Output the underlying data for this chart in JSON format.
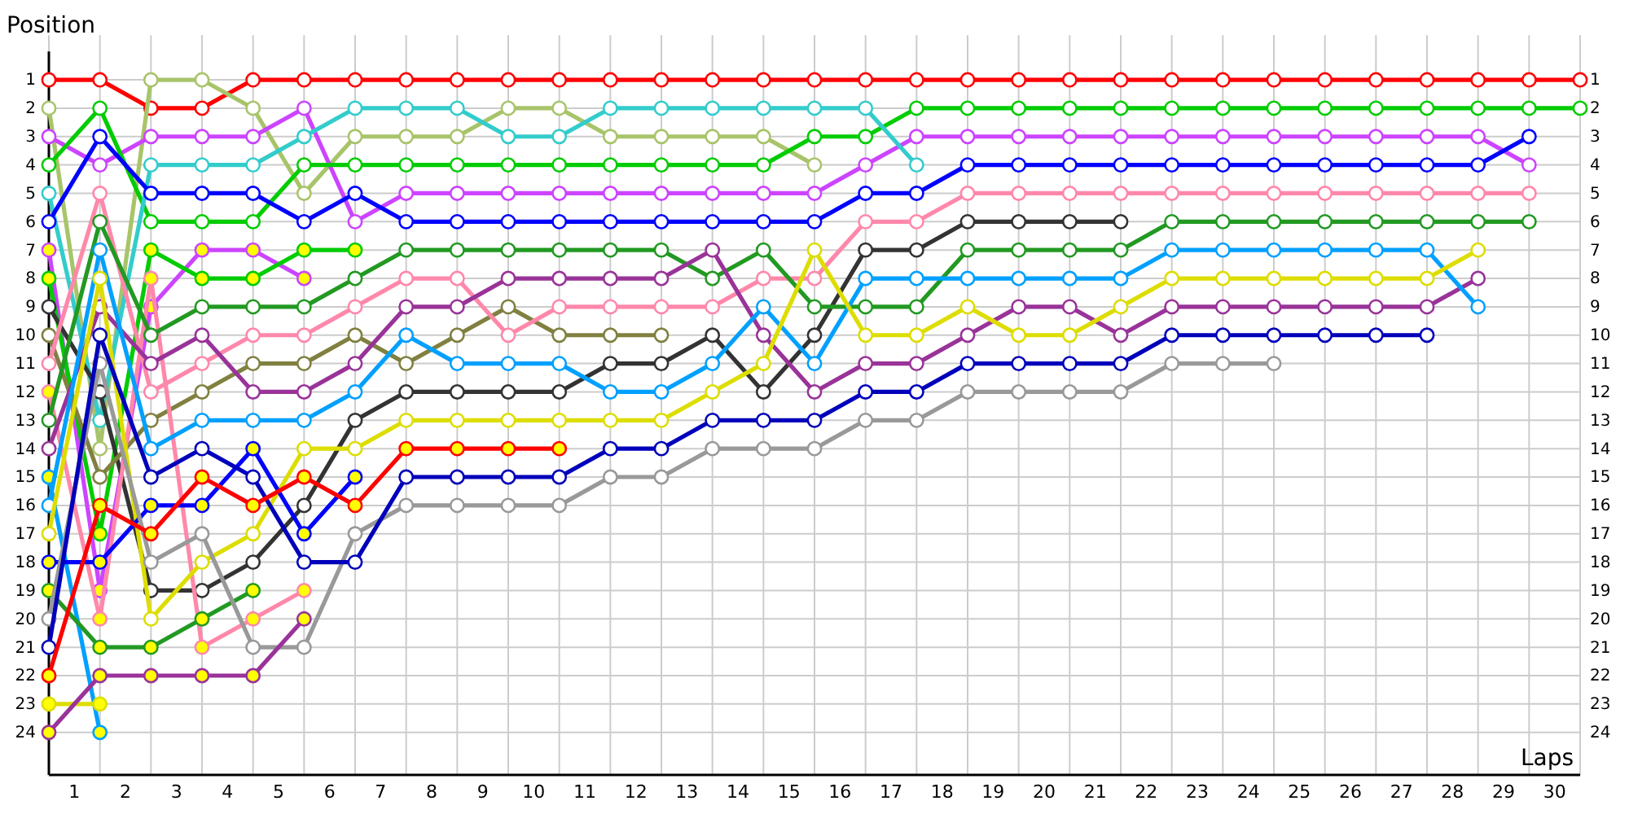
{
  "chart_data": {
    "type": "line",
    "xlabel": "Laps",
    "ylabel": "Position",
    "marker": "circle",
    "grid": true,
    "x": [
      0,
      1,
      2,
      3,
      4,
      5,
      6,
      7,
      8,
      9,
      10,
      11,
      12,
      13,
      14,
      15,
      16,
      17,
      18,
      19,
      20,
      21,
      22,
      23,
      24,
      25,
      26,
      27,
      28,
      29,
      30
    ],
    "xlim": [
      0,
      30
    ],
    "xticks": [
      {
        "value": 0,
        "label": null
      },
      {
        "value": 0.5,
        "label": "1"
      },
      {
        "value": 1,
        "label": null
      },
      {
        "value": 1.5,
        "label": "2"
      },
      {
        "value": 2,
        "label": null
      },
      {
        "value": 2.5,
        "label": "3"
      },
      {
        "value": 3,
        "label": null
      },
      {
        "value": 3.5,
        "label": "4"
      },
      {
        "value": 4,
        "label": null
      },
      {
        "value": 4.5,
        "label": "5"
      },
      {
        "value": 5,
        "label": null
      },
      {
        "value": 5.5,
        "label": "6"
      },
      {
        "value": 6,
        "label": null
      },
      {
        "value": 6.5,
        "label": "7"
      },
      {
        "value": 7,
        "label": null
      },
      {
        "value": 7.5,
        "label": "8"
      },
      {
        "value": 8,
        "label": null
      },
      {
        "value": 8.5,
        "label": "9"
      },
      {
        "value": 9,
        "label": null
      },
      {
        "value": 9.5,
        "label": "10"
      },
      {
        "value": 10,
        "label": null
      },
      {
        "value": 10.5,
        "label": "11"
      },
      {
        "value": 11,
        "label": null
      },
      {
        "value": 11.5,
        "label": "12"
      },
      {
        "value": 12,
        "label": null
      },
      {
        "value": 12.5,
        "label": "13"
      },
      {
        "value": 13,
        "label": null
      },
      {
        "value": 13.5,
        "label": "14"
      },
      {
        "value": 14,
        "label": null
      },
      {
        "value": 14.5,
        "label": "15"
      },
      {
        "value": 15,
        "label": null
      },
      {
        "value": 15.5,
        "label": "16"
      },
      {
        "value": 16,
        "label": null
      },
      {
        "value": 16.5,
        "label": "17"
      },
      {
        "value": 17,
        "label": null
      },
      {
        "value": 17.5,
        "label": "18"
      },
      {
        "value": 18,
        "label": null
      },
      {
        "value": 18.5,
        "label": "19"
      },
      {
        "value": 19,
        "label": null
      },
      {
        "value": 19.5,
        "label": "20"
      },
      {
        "value": 20,
        "label": null
      },
      {
        "value": 20.5,
        "label": "21"
      },
      {
        "value": 21,
        "label": null
      },
      {
        "value": 21.5,
        "label": "22"
      },
      {
        "value": 22,
        "label": null
      },
      {
        "value": 22.5,
        "label": "23"
      },
      {
        "value": 23,
        "label": null
      },
      {
        "value": 23.5,
        "label": "24"
      },
      {
        "value": 24,
        "label": null
      },
      {
        "value": 24.5,
        "label": "25"
      },
      {
        "value": 25,
        "label": null
      },
      {
        "value": 25.5,
        "label": "26"
      },
      {
        "value": 26,
        "label": null
      },
      {
        "value": 26.5,
        "label": "27"
      },
      {
        "value": 27,
        "label": null
      },
      {
        "value": 27.5,
        "label": "28"
      },
      {
        "value": 28,
        "label": null
      },
      {
        "value": 28.5,
        "label": "29"
      },
      {
        "value": 29,
        "label": null
      },
      {
        "value": 29.5,
        "label": "30"
      },
      {
        "value": 30,
        "label": null
      }
    ],
    "ylim": [
      25.5,
      0
    ],
    "yticks": [
      1,
      2,
      3,
      4,
      5,
      6,
      7,
      8,
      9,
      10,
      11,
      12,
      13,
      14,
      15,
      16,
      17,
      18,
      19,
      20,
      21,
      22,
      23,
      24
    ],
    "y2lim": [
      25.5,
      0
    ],
    "y2ticks": [
      1,
      2,
      3,
      4,
      5,
      6,
      7,
      8,
      9,
      10,
      11,
      12,
      13,
      14,
      15,
      16,
      17,
      18,
      19,
      20,
      21,
      22,
      23,
      24
    ],
    "series": [
      {
        "color": "#ff0000",
        "values": [
          1,
          1,
          2,
          2,
          1,
          1,
          1,
          1,
          1,
          1,
          1,
          1,
          1,
          1,
          1,
          1,
          1,
          1,
          1,
          1,
          1,
          1,
          1,
          1,
          1,
          1,
          1,
          1,
          1,
          1,
          1
        ]
      },
      {
        "color": "#a8c46a",
        "values": [
          2,
          14,
          1,
          1,
          2,
          5,
          3,
          3,
          3,
          2,
          2,
          3,
          3,
          3,
          3,
          4,
          null,
          null,
          null,
          null,
          null,
          null,
          null,
          null,
          null,
          null,
          null,
          null,
          null,
          null,
          null
        ]
      },
      {
        "color": "#cc44ff",
        "values": [
          3,
          4,
          3,
          3,
          3,
          2,
          6,
          5,
          5,
          5,
          5,
          5,
          5,
          5,
          5,
          5,
          4,
          3,
          3,
          3,
          3,
          3,
          3,
          3,
          3,
          3,
          3,
          3,
          3,
          4,
          null
        ]
      },
      {
        "color": "#00cc00",
        "values": [
          4,
          2,
          6,
          6,
          6,
          4,
          4,
          4,
          4,
          4,
          4,
          4,
          4,
          4,
          4,
          3,
          3,
          2,
          2,
          2,
          2,
          2,
          2,
          2,
          2,
          2,
          2,
          2,
          2,
          2,
          2
        ]
      },
      {
        "color": "#33cccc",
        "values": [
          5,
          13,
          4,
          4,
          4,
          3,
          2,
          2,
          2,
          3,
          3,
          2,
          2,
          2,
          2,
          2,
          2,
          4,
          null,
          null,
          null,
          null,
          null,
          null,
          null,
          null,
          null,
          null,
          null,
          null,
          null
        ]
      },
      {
        "color": "#0000ff",
        "values": [
          6,
          3,
          5,
          5,
          5,
          6,
          5,
          6,
          6,
          6,
          6,
          6,
          6,
          6,
          6,
          6,
          5,
          5,
          4,
          4,
          4,
          4,
          4,
          4,
          4,
          4,
          4,
          4,
          4,
          3,
          null
        ]
      },
      {
        "color": "#cc44ff",
        "values": [
          7,
          19,
          9,
          7,
          7,
          8,
          null,
          null,
          null,
          null,
          null,
          null,
          null,
          null,
          null,
          null,
          null,
          null,
          null,
          null,
          null,
          null,
          null,
          null,
          null,
          null,
          null,
          null,
          null,
          null,
          null
        ],
        "colors": [
          "#ffff00",
          "#ffff00",
          "#ffff00",
          "#ffff00",
          "#ffff00",
          "#ffff00",
          null,
          null,
          null,
          null,
          null,
          null,
          null,
          null,
          null,
          null,
          null,
          null,
          null,
          null,
          null,
          null,
          null,
          null,
          null,
          null,
          null,
          null,
          null,
          null,
          null
        ]
      },
      {
        "color": "#00cc00",
        "values": [
          8,
          17,
          7,
          8,
          8,
          7,
          7,
          null,
          null,
          null,
          null,
          null,
          null,
          null,
          null,
          null,
          null,
          null,
          null,
          null,
          null,
          null,
          null,
          null,
          null,
          null,
          null,
          null,
          null,
          null,
          null
        ],
        "colors": [
          "#ffff00",
          "#ffff00",
          "#ffff00",
          "#ffff00",
          "#ffff00",
          "#ffff00",
          "#ffff00",
          null,
          null,
          null,
          null,
          null,
          null,
          null,
          null,
          null,
          null,
          null,
          null,
          null,
          null,
          null,
          null,
          null,
          null,
          null,
          null,
          null,
          null,
          null,
          null
        ]
      },
      {
        "color": "#333333",
        "values": [
          9,
          12,
          19,
          19,
          18,
          16,
          13,
          12,
          12,
          12,
          12,
          11,
          11,
          10,
          12,
          10,
          7,
          7,
          6,
          6,
          6,
          6,
          null,
          null,
          null,
          null,
          null,
          null,
          null,
          null,
          null
        ]
      },
      {
        "color": "#808040",
        "values": [
          10,
          15,
          13,
          12,
          11,
          11,
          10,
          11,
          10,
          9,
          10,
          10,
          10,
          null,
          null,
          null,
          null,
          null,
          null,
          null,
          null,
          null,
          null,
          null,
          null,
          null,
          null,
          null,
          null,
          null,
          null
        ]
      },
      {
        "color": "#ff88aa",
        "values": [
          11,
          5,
          12,
          11,
          10,
          10,
          9,
          8,
          8,
          10,
          9,
          9,
          9,
          9,
          8,
          8,
          6,
          6,
          5,
          5,
          5,
          5,
          5,
          5,
          5,
          5,
          5,
          5,
          5,
          5,
          null
        ]
      },
      {
        "color": "#ff88aa",
        "values": [
          12,
          20,
          8,
          21,
          20,
          19,
          null,
          null,
          null,
          null,
          null,
          null,
          null,
          null,
          null,
          null,
          null,
          null,
          null,
          null,
          null,
          null,
          null,
          null,
          null,
          null,
          null,
          null,
          null,
          null,
          null
        ],
        "colors": [
          "#ffff00",
          "#ffff00",
          "#ffff00",
          "#ffff00",
          "#ffff00",
          "#ffff00",
          null,
          null,
          null,
          null,
          null,
          null,
          null,
          null,
          null,
          null,
          null,
          null,
          null,
          null,
          null,
          null,
          null,
          null,
          null,
          null,
          null,
          null,
          null,
          null,
          null
        ]
      },
      {
        "color": "#229922",
        "values": [
          13,
          6,
          10,
          9,
          9,
          9,
          8,
          7,
          7,
          7,
          7,
          7,
          7,
          8,
          7,
          9,
          9,
          9,
          7,
          7,
          7,
          7,
          6,
          6,
          6,
          6,
          6,
          6,
          6,
          6,
          null
        ]
      },
      {
        "color": "#993399",
        "values": [
          14,
          9,
          11,
          10,
          12,
          12,
          11,
          9,
          9,
          8,
          8,
          8,
          8,
          7,
          10,
          12,
          11,
          11,
          10,
          9,
          9,
          10,
          9,
          9,
          9,
          9,
          9,
          9,
          8,
          null,
          null
        ]
      },
      {
        "color": "#00a0ff",
        "values": [
          15,
          24,
          null,
          null,
          null,
          null,
          null,
          null,
          null,
          null,
          null,
          null,
          null,
          null,
          null,
          null,
          null,
          null,
          null,
          null,
          null,
          null,
          null,
          null,
          null,
          null,
          null,
          null,
          null,
          null,
          null
        ],
        "colors": [
          "#ffff00",
          "#ffff00",
          null,
          null,
          null,
          null,
          null,
          null,
          null,
          null,
          null,
          null,
          null,
          null,
          null,
          null,
          null,
          null,
          null,
          null,
          null,
          null,
          null,
          null,
          null,
          null,
          null,
          null,
          null,
          null,
          null
        ]
      },
      {
        "color": "#00a0ff",
        "values": [
          16,
          7,
          14,
          13,
          13,
          13,
          12,
          10,
          11,
          11,
          11,
          12,
          12,
          11,
          9,
          11,
          8,
          8,
          8,
          8,
          8,
          8,
          7,
          7,
          7,
          7,
          7,
          7,
          9,
          null,
          null
        ]
      },
      {
        "color": "#dddd00",
        "values": [
          17,
          8,
          20,
          18,
          17,
          14,
          14,
          13,
          13,
          13,
          13,
          13,
          13,
          12,
          11,
          7,
          10,
          10,
          9,
          10,
          10,
          9,
          8,
          8,
          8,
          8,
          8,
          8,
          7,
          null,
          null
        ]
      },
      {
        "color": "#0000ff",
        "values": [
          18,
          18,
          16,
          16,
          14,
          17,
          15,
          null,
          null,
          null,
          null,
          null,
          null,
          null,
          null,
          null,
          null,
          null,
          null,
          null,
          null,
          null,
          null,
          null,
          null,
          null,
          null,
          null,
          null,
          null,
          null
        ],
        "colors": [
          "#ffff00",
          "#ffff00",
          "#ffff00",
          "#ffff00",
          "#ffff00",
          "#ffff00",
          "#ffff00",
          null,
          null,
          null,
          null,
          null,
          null,
          null,
          null,
          null,
          null,
          null,
          null,
          null,
          null,
          null,
          null,
          null,
          null,
          null,
          null,
          null,
          null,
          null,
          null
        ]
      },
      {
        "color": "#229922",
        "values": [
          19,
          21,
          21,
          20,
          19,
          null,
          null,
          null,
          null,
          null,
          null,
          null,
          null,
          null,
          null,
          null,
          null,
          null,
          null,
          null,
          null,
          null,
          null,
          null,
          null,
          null,
          null,
          null,
          null,
          null,
          null
        ],
        "colors": [
          "#ffff00",
          "#ffff00",
          "#ffff00",
          "#ffff00",
          "#ffff00",
          null,
          null,
          null,
          null,
          null,
          null,
          null,
          null,
          null,
          null,
          null,
          null,
          null,
          null,
          null,
          null,
          null,
          null,
          null,
          null,
          null,
          null,
          null,
          null,
          null,
          null
        ]
      },
      {
        "color": "#999999",
        "values": [
          20,
          11,
          18,
          17,
          21,
          21,
          17,
          16,
          16,
          16,
          16,
          15,
          15,
          14,
          14,
          14,
          13,
          13,
          12,
          12,
          12,
          12,
          11,
          11,
          11,
          null,
          null,
          null,
          null,
          null,
          null
        ]
      },
      {
        "color": "#0000bb",
        "values": [
          21,
          10,
          15,
          14,
          15,
          18,
          18,
          15,
          15,
          15,
          15,
          14,
          14,
          13,
          13,
          13,
          12,
          12,
          11,
          11,
          11,
          11,
          10,
          10,
          10,
          10,
          10,
          10,
          null,
          null,
          null
        ]
      },
      {
        "color": "#ff0000",
        "values": [
          22,
          16,
          17,
          15,
          16,
          15,
          16,
          14,
          14,
          14,
          14,
          null,
          null,
          null,
          null,
          null,
          null,
          null,
          null,
          null,
          null,
          null,
          null,
          null,
          null,
          null,
          null,
          null,
          null,
          null,
          null
        ],
        "colors": [
          "#ffff00",
          "#ffff00",
          "#ffff00",
          "#ffff00",
          "#ffff00",
          "#ffff00",
          "#ffff00",
          "#ffff00",
          "#ffff00",
          "#ffff00",
          "#ffff00",
          null,
          null,
          null,
          null,
          null,
          null,
          null,
          null,
          null,
          null,
          null,
          null,
          null,
          null,
          null,
          null,
          null,
          null,
          null,
          null
        ]
      },
      {
        "color": "#dddd00",
        "values": [
          23,
          23,
          null,
          null,
          null,
          null,
          null,
          null,
          null,
          null,
          null,
          null,
          null,
          null,
          null,
          null,
          null,
          null,
          null,
          null,
          null,
          null,
          null,
          null,
          null,
          null,
          null,
          null,
          null,
          null,
          null
        ],
        "colors": [
          "#ffff00",
          "#ffff00",
          null,
          null,
          null,
          null,
          null,
          null,
          null,
          null,
          null,
          null,
          null,
          null,
          null,
          null,
          null,
          null,
          null,
          null,
          null,
          null,
          null,
          null,
          null,
          null,
          null,
          null,
          null,
          null,
          null
        ]
      },
      {
        "color": "#993399",
        "values": [
          24,
          22,
          22,
          22,
          22,
          20,
          null,
          null,
          null,
          null,
          null,
          null,
          null,
          null,
          null,
          null,
          null,
          null,
          null,
          null,
          null,
          null,
          null,
          null,
          null,
          null,
          null,
          null,
          null,
          null,
          null
        ],
        "colors": [
          "#ffff00",
          "#ffff00",
          "#ffff00",
          "#ffff00",
          "#ffff00",
          "#ffff00",
          null,
          null,
          null,
          null,
          null,
          null,
          null,
          null,
          null,
          null,
          null,
          null,
          null,
          null,
          null,
          null,
          null,
          null,
          null,
          null,
          null,
          null,
          null,
          null,
          null
        ]
      }
    ]
  }
}
